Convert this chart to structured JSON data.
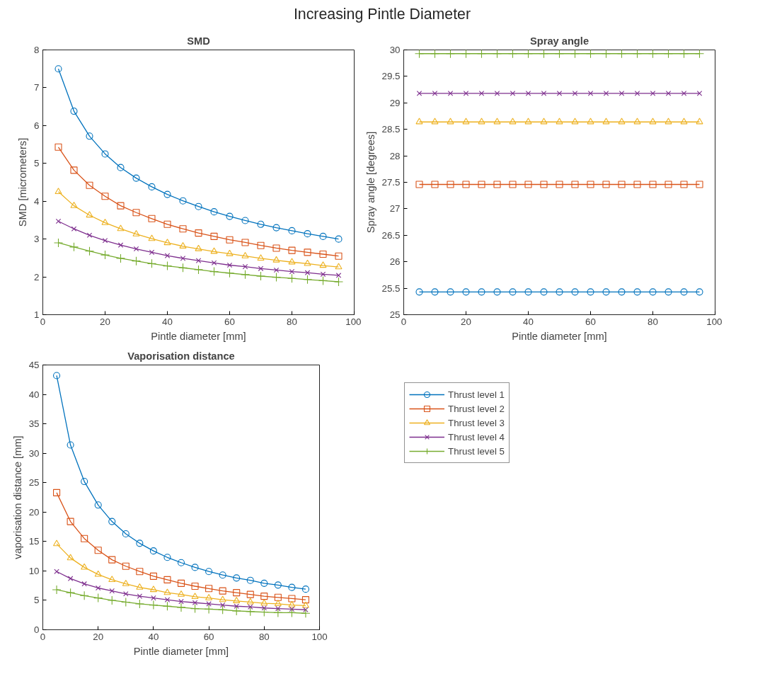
{
  "chart_data": [
    {
      "type": "line",
      "title": "SMD",
      "annotations": [
        "Increasing Pintle Diameter"
      ],
      "xlabel": "Pintle diameter [mm]",
      "ylabel": "SMD [micrometers]",
      "xlim": [
        0,
        100
      ],
      "xticks": [
        0,
        20,
        40,
        60,
        80,
        100
      ],
      "ylim": [
        1,
        8
      ],
      "yticks": [
        1,
        2,
        3,
        4,
        5,
        6,
        7,
        8
      ],
      "grid": false,
      "legend": false,
      "x": [
        5,
        10,
        15,
        20,
        25,
        30,
        35,
        40,
        45,
        50,
        55,
        60,
        65,
        70,
        75,
        80,
        85,
        90,
        95
      ],
      "series": [
        {
          "color": "#0072bd",
          "marker": "circle",
          "values": [
            7.5,
            6.38,
            5.72,
            5.25,
            4.89,
            4.61,
            4.38,
            4.18,
            4.01,
            3.86,
            3.72,
            3.6,
            3.49,
            3.39,
            3.3,
            3.22,
            3.14,
            3.07,
            3.0
          ]
        },
        {
          "color": "#d95319",
          "marker": "square",
          "values": [
            5.43,
            4.82,
            4.42,
            4.13,
            3.88,
            3.7,
            3.54,
            3.39,
            3.27,
            3.16,
            3.07,
            2.98,
            2.91,
            2.83,
            2.76,
            2.7,
            2.65,
            2.6,
            2.55
          ]
        },
        {
          "color": "#edb120",
          "marker": "triangle",
          "values": [
            4.25,
            3.88,
            3.63,
            3.43,
            3.27,
            3.13,
            3.01,
            2.9,
            2.81,
            2.74,
            2.67,
            2.61,
            2.55,
            2.49,
            2.44,
            2.39,
            2.35,
            2.3,
            2.26
          ]
        },
        {
          "color": "#7e2f8e",
          "marker": "cross",
          "values": [
            3.47,
            3.27,
            3.1,
            2.96,
            2.84,
            2.74,
            2.65,
            2.56,
            2.49,
            2.43,
            2.37,
            2.31,
            2.27,
            2.22,
            2.18,
            2.14,
            2.11,
            2.07,
            2.04
          ]
        },
        {
          "color": "#77ac30",
          "marker": "plus",
          "values": [
            2.9,
            2.79,
            2.68,
            2.58,
            2.49,
            2.42,
            2.35,
            2.29,
            2.24,
            2.19,
            2.14,
            2.1,
            2.06,
            2.02,
            1.99,
            1.96,
            1.93,
            1.9,
            1.87
          ]
        }
      ]
    },
    {
      "type": "line",
      "title": "Spray angle",
      "xlabel": "Pintle diameter [mm]",
      "ylabel": "Spray angle [degrees]",
      "xlim": [
        0,
        100
      ],
      "xticks": [
        0,
        20,
        40,
        60,
        80,
        100
      ],
      "ylim": [
        25,
        30
      ],
      "yticks": [
        25,
        25.5,
        26,
        26.5,
        27,
        27.5,
        28,
        28.5,
        29,
        29.5,
        30
      ],
      "grid": false,
      "legend": false,
      "x": [
        5,
        10,
        15,
        20,
        25,
        30,
        35,
        40,
        45,
        50,
        55,
        60,
        65,
        70,
        75,
        80,
        85,
        90,
        95
      ],
      "series": [
        {
          "color": "#0072bd",
          "marker": "circle",
          "values": [
            25.43,
            25.43,
            25.43,
            25.43,
            25.43,
            25.43,
            25.43,
            25.43,
            25.43,
            25.43,
            25.43,
            25.43,
            25.43,
            25.43,
            25.43,
            25.43,
            25.43,
            25.43,
            25.43
          ]
        },
        {
          "color": "#d95319",
          "marker": "square",
          "values": [
            27.46,
            27.46,
            27.46,
            27.46,
            27.46,
            27.46,
            27.46,
            27.46,
            27.46,
            27.46,
            27.46,
            27.46,
            27.46,
            27.46,
            27.46,
            27.46,
            27.46,
            27.46,
            27.46
          ]
        },
        {
          "color": "#edb120",
          "marker": "triangle",
          "values": [
            28.64,
            28.64,
            28.64,
            28.64,
            28.64,
            28.64,
            28.64,
            28.64,
            28.64,
            28.64,
            28.64,
            28.64,
            28.64,
            28.64,
            28.64,
            28.64,
            28.64,
            28.64,
            28.64
          ]
        },
        {
          "color": "#7e2f8e",
          "marker": "cross",
          "values": [
            29.18,
            29.18,
            29.18,
            29.18,
            29.18,
            29.18,
            29.18,
            29.18,
            29.18,
            29.18,
            29.18,
            29.18,
            29.18,
            29.18,
            29.18,
            29.18,
            29.18,
            29.18,
            29.18
          ]
        },
        {
          "color": "#77ac30",
          "marker": "plus",
          "values": [
            29.93,
            29.93,
            29.93,
            29.93,
            29.93,
            29.93,
            29.93,
            29.93,
            29.93,
            29.93,
            29.93,
            29.93,
            29.93,
            29.93,
            29.93,
            29.93,
            29.93,
            29.93,
            29.93
          ]
        }
      ]
    },
    {
      "type": "line",
      "title": "Vaporisation distance",
      "xlabel": "Pintle diameter [mm]",
      "ylabel": "vaporisation distance [mm]",
      "xlim": [
        0,
        100
      ],
      "xticks": [
        0,
        20,
        40,
        60,
        80,
        100
      ],
      "ylim": [
        0,
        45
      ],
      "yticks": [
        0,
        5,
        10,
        15,
        20,
        25,
        30,
        35,
        40,
        45
      ],
      "grid": false,
      "legend": "right",
      "x": [
        5,
        10,
        15,
        20,
        25,
        30,
        35,
        40,
        45,
        50,
        55,
        60,
        65,
        70,
        75,
        80,
        85,
        90,
        95
      ],
      "series": [
        {
          "name": "Thrust level 1",
          "color": "#0072bd",
          "marker": "circle",
          "values": [
            43.2,
            31.4,
            25.2,
            21.2,
            18.4,
            16.3,
            14.7,
            13.4,
            12.3,
            11.4,
            10.6,
            9.9,
            9.3,
            8.8,
            8.4,
            7.9,
            7.6,
            7.2,
            6.9
          ]
        },
        {
          "name": "Thrust level 2",
          "color": "#d95319",
          "marker": "square",
          "values": [
            23.3,
            18.4,
            15.5,
            13.5,
            11.9,
            10.8,
            9.9,
            9.1,
            8.5,
            7.9,
            7.4,
            7.0,
            6.6,
            6.3,
            6.0,
            5.7,
            5.5,
            5.3,
            5.1
          ]
        },
        {
          "name": "Thrust level 3",
          "color": "#edb120",
          "marker": "triangle",
          "values": [
            14.6,
            12.2,
            10.6,
            9.4,
            8.5,
            7.8,
            7.2,
            6.8,
            6.3,
            6.0,
            5.6,
            5.4,
            5.1,
            4.9,
            4.7,
            4.5,
            4.4,
            4.2,
            4.1
          ]
        },
        {
          "name": "Thrust level 4",
          "color": "#7e2f8e",
          "marker": "cross",
          "values": [
            9.9,
            8.7,
            7.8,
            7.1,
            6.6,
            6.1,
            5.7,
            5.4,
            5.1,
            4.8,
            4.6,
            4.4,
            4.2,
            4.0,
            3.9,
            3.7,
            3.6,
            3.5,
            3.4
          ]
        },
        {
          "name": "Thrust level 5",
          "color": "#77ac30",
          "marker": "plus",
          "values": [
            6.8,
            6.3,
            5.8,
            5.4,
            5.0,
            4.7,
            4.4,
            4.2,
            4.0,
            3.8,
            3.6,
            3.5,
            3.4,
            3.2,
            3.1,
            3.0,
            2.9,
            2.9,
            2.8
          ]
        }
      ]
    }
  ]
}
